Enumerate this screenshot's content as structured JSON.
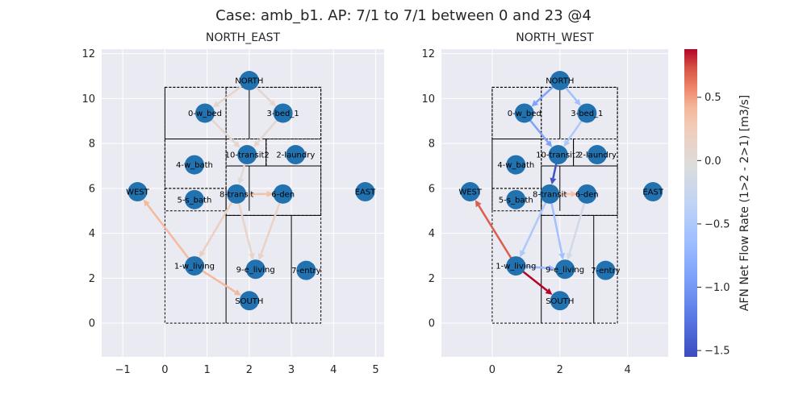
{
  "chart_data": {
    "type": "network",
    "title": "Case: amb_b1. AP: 7/1 to 7/1 between 0 and 23 @4",
    "colorbar": {
      "label": "AFN Net Flow Rate (1>2 - 2>1) [m3/s]",
      "range": [
        -1.55,
        0.88
      ],
      "ticks": [
        0.5,
        0.0,
        -0.5,
        -1.0,
        -1.5
      ],
      "tick_labels": [
        "0.5",
        "0.0",
        "−0.5",
        "−1.0",
        "−1.5"
      ],
      "colormap": "coolwarm"
    },
    "panels": [
      {
        "title": "NORTH_EAST",
        "xlim": [
          -1.5,
          5.2
        ],
        "ylim": [
          -1.5,
          12.2
        ],
        "xticks": [
          -1,
          0,
          1,
          2,
          3,
          4,
          5
        ],
        "yticks": [
          0,
          2,
          4,
          6,
          8,
          10,
          12
        ],
        "nodes": [
          {
            "name": "NORTH",
            "x": 2.0,
            "y": 10.8
          },
          {
            "name": "0-w_bed",
            "x": 0.95,
            "y": 9.35
          },
          {
            "name": "3-bed_1",
            "x": 2.8,
            "y": 9.35
          },
          {
            "name": "10-transit2",
            "x": 1.95,
            "y": 7.5
          },
          {
            "name": "2-laundry",
            "x": 3.1,
            "y": 7.5
          },
          {
            "name": "4-w_bath",
            "x": 0.7,
            "y": 7.05
          },
          {
            "name": "WEST",
            "x": -0.65,
            "y": 5.85
          },
          {
            "name": "EAST",
            "x": 4.75,
            "y": 5.85
          },
          {
            "name": "8-transit",
            "x": 1.7,
            "y": 5.75
          },
          {
            "name": "6-den",
            "x": 2.8,
            "y": 5.75
          },
          {
            "name": "5-s_bath",
            "x": 0.7,
            "y": 5.5
          },
          {
            "name": "1-w_living",
            "x": 0.7,
            "y": 2.55
          },
          {
            "name": "9-e_living",
            "x": 2.15,
            "y": 2.4
          },
          {
            "name": "7-entry",
            "x": 3.35,
            "y": 2.35
          },
          {
            "name": "SOUTH",
            "x": 2.0,
            "y": 1.0
          }
        ],
        "edges": [
          {
            "from": "NORTH",
            "to": "0-w_bed",
            "value": 0.1
          },
          {
            "from": "NORTH",
            "to": "3-bed_1",
            "value": 0.1
          },
          {
            "from": "0-w_bed",
            "to": "10-transit2",
            "value": 0.1
          },
          {
            "from": "3-bed_1",
            "to": "10-transit2",
            "value": 0.1
          },
          {
            "from": "10-transit2",
            "to": "8-transit",
            "value": 0.02
          },
          {
            "from": "8-transit",
            "to": "6-den",
            "value": 0.35
          },
          {
            "from": "6-den",
            "to": "9-e_living",
            "value": 0.15
          },
          {
            "from": "8-transit",
            "to": "9-e_living",
            "value": 0.12
          },
          {
            "from": "8-transit",
            "to": "1-w_living",
            "value": 0.2
          },
          {
            "from": "1-w_living",
            "to": "WEST",
            "value": 0.4
          },
          {
            "from": "1-w_living",
            "to": "SOUTH",
            "value": 0.4
          }
        ]
      },
      {
        "title": "NORTH_WEST",
        "xlim": [
          -1.5,
          5.2
        ],
        "ylim": [
          -1.5,
          12.2
        ],
        "xticks": [
          0,
          2,
          4
        ],
        "yticks": [
          0,
          2,
          4,
          6,
          8,
          10,
          12
        ],
        "nodes": [
          {
            "name": "NORTH",
            "x": 2.0,
            "y": 10.8
          },
          {
            "name": "0-w_bed",
            "x": 0.95,
            "y": 9.35
          },
          {
            "name": "3-bed_1",
            "x": 2.8,
            "y": 9.35
          },
          {
            "name": "10-transit2",
            "x": 1.95,
            "y": 7.5
          },
          {
            "name": "2-laundry",
            "x": 3.1,
            "y": 7.5
          },
          {
            "name": "4-w_bath",
            "x": 0.7,
            "y": 7.05
          },
          {
            "name": "WEST",
            "x": -0.65,
            "y": 5.85
          },
          {
            "name": "EAST",
            "x": 4.75,
            "y": 5.85
          },
          {
            "name": "8-transit",
            "x": 1.7,
            "y": 5.75
          },
          {
            "name": "6-den",
            "x": 2.8,
            "y": 5.75
          },
          {
            "name": "5-s_bath",
            "x": 0.7,
            "y": 5.5
          },
          {
            "name": "1-w_living",
            "x": 0.7,
            "y": 2.55
          },
          {
            "name": "9-e_living",
            "x": 2.15,
            "y": 2.4
          },
          {
            "name": "7-entry",
            "x": 3.35,
            "y": 2.35
          },
          {
            "name": "SOUTH",
            "x": 2.0,
            "y": 1.0
          }
        ],
        "edges": [
          {
            "from": "NORTH",
            "to": "0-w_bed",
            "value": -0.9
          },
          {
            "from": "NORTH",
            "to": "3-bed_1",
            "value": -0.6
          },
          {
            "from": "0-w_bed",
            "to": "10-transit2",
            "value": -0.9
          },
          {
            "from": "3-bed_1",
            "to": "10-transit2",
            "value": -0.5
          },
          {
            "from": "10-transit2",
            "to": "8-transit",
            "value": -1.5
          },
          {
            "from": "8-transit",
            "to": "6-den",
            "value": 0.35
          },
          {
            "from": "6-den",
            "to": "9-e_living",
            "value": -0.15
          },
          {
            "from": "8-transit",
            "to": "9-e_living",
            "value": -0.6
          },
          {
            "from": "8-transit",
            "to": "1-w_living",
            "value": -0.5
          },
          {
            "from": "1-w_living",
            "to": "9-e_living",
            "value": -0.7
          },
          {
            "from": "1-w_living",
            "to": "WEST",
            "value": 0.7
          },
          {
            "from": "1-w_living",
            "to": "SOUTH",
            "value": 0.88
          }
        ]
      }
    ]
  },
  "colors": {
    "node": "#2372b0",
    "panel_bg": "#eaeaf2",
    "grid": "#ffffff",
    "wall": "#000000"
  }
}
